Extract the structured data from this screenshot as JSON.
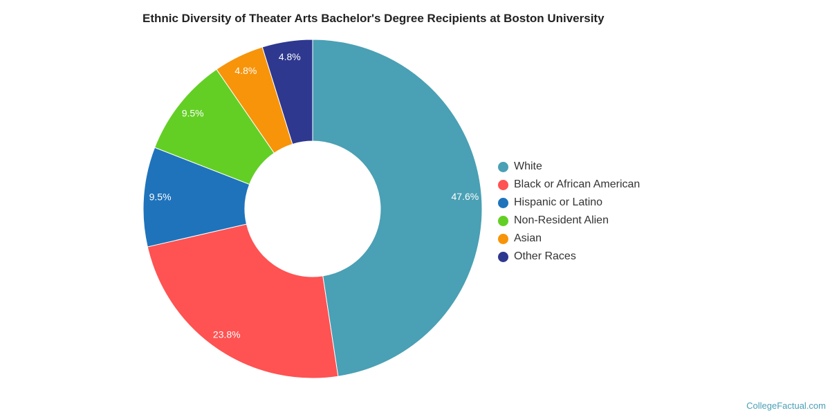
{
  "chart_data": {
    "type": "pie",
    "donut": true,
    "title": "Ethnic Diversity of Theater Arts Bachelor's Degree Recipients at Boston University",
    "legend_position": "right",
    "slices": [
      {
        "name": "White",
        "value": 47.6,
        "label": "47.6%",
        "color": "#4aa0b4"
      },
      {
        "name": "Black or African American",
        "value": 23.8,
        "label": "23.8%",
        "color": "#ff5252"
      },
      {
        "name": "Hispanic or Latino",
        "value": 9.5,
        "label": "9.5%",
        "color": "#1f73bb"
      },
      {
        "name": "Non-Resident Alien",
        "value": 9.5,
        "label": "9.5%",
        "color": "#63cf25"
      },
      {
        "name": "Asian",
        "value": 4.8,
        "label": "4.8%",
        "color": "#f7940a"
      },
      {
        "name": "Other Races",
        "value": 4.8,
        "label": "4.8%",
        "color": "#2e388f"
      }
    ]
  },
  "credit": "CollegeFactual.com"
}
